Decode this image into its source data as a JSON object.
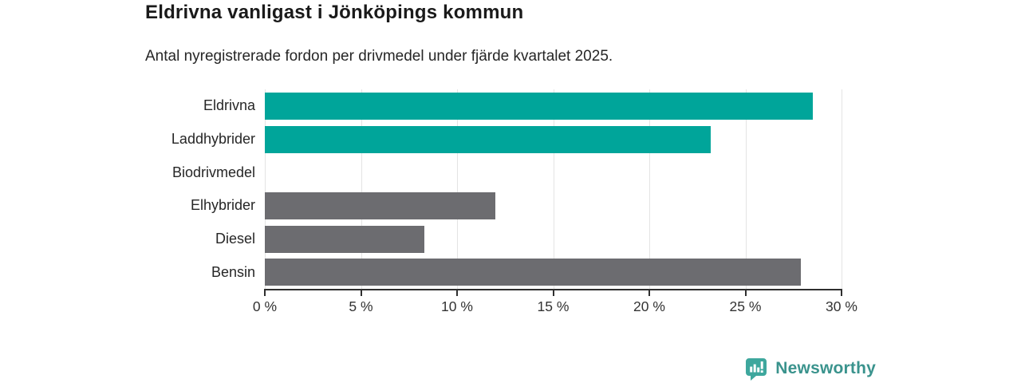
{
  "chart_data": {
    "type": "bar",
    "orientation": "horizontal",
    "title": "Eldrivna vanligast i Jönköpings kommun",
    "subtitle": "Antal nyregistrerade fordon per drivmedel under fjärde kvartalet 2025.",
    "categories": [
      "Eldrivna",
      "Laddhybrider",
      "Biodrivmedel",
      "Elhybrider",
      "Diesel",
      "Bensin"
    ],
    "values": [
      28.5,
      23.2,
      0,
      12,
      8.3,
      27.9
    ],
    "unit": "%",
    "bar_colors": [
      "#00A59A",
      "#00A59A",
      "#6C6C70",
      "#6C6C70",
      "#6C6C70",
      "#6C6C70"
    ],
    "highlight_color": "#00A59A",
    "base_color": "#6C6C70",
    "xlabel": "",
    "ylabel": "",
    "xlim": [
      0,
      30
    ],
    "x_ticks": [
      0,
      5,
      10,
      15,
      20,
      25,
      30
    ],
    "x_tick_labels": [
      "0 %",
      "5 %",
      "10 %",
      "15 %",
      "20 %",
      "25 %",
      "30 %"
    ],
    "grid": "vertical-only",
    "legend": "none"
  },
  "footer": {
    "brand": "Newsworthy",
    "brand_color": "#3A938D",
    "icon_color": "#3EA79D",
    "icon": "newsworthy-bar-chart-bubble-icon"
  }
}
